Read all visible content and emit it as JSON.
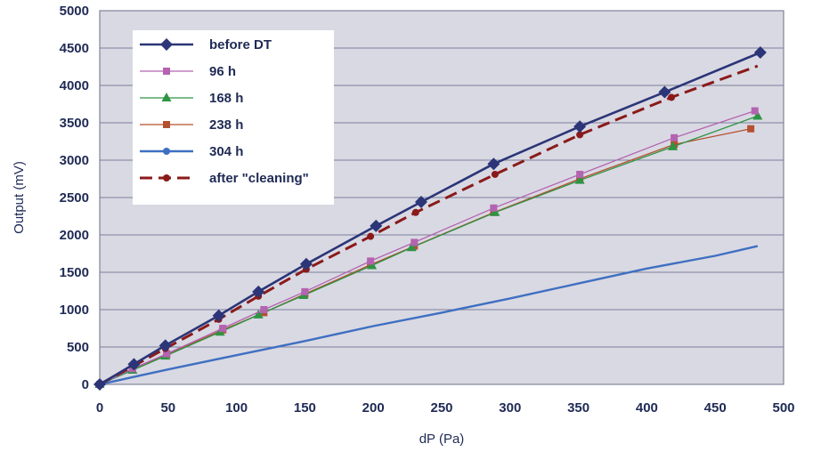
{
  "chart_data": {
    "type": "line",
    "title": "",
    "xlabel": "dP (Pa)",
    "ylabel": "Output (mV)",
    "xlim": [
      0,
      500
    ],
    "ylim": [
      0,
      5000
    ],
    "xticks": [
      0,
      50,
      100,
      150,
      200,
      250,
      300,
      350,
      400,
      450,
      500
    ],
    "yticks": [
      0,
      500,
      1000,
      1500,
      2000,
      2500,
      3000,
      3500,
      4000,
      4500,
      5000
    ],
    "grid": "horizontal",
    "legend_position": "top-left",
    "series": [
      {
        "name": "before DT",
        "color": "#2b3577",
        "dash": "solid",
        "marker": "diamond",
        "x": [
          0,
          25,
          48,
          87,
          116,
          151,
          202,
          235,
          288,
          351,
          413,
          483
        ],
        "y": [
          0,
          270,
          520,
          920,
          1240,
          1610,
          2120,
          2440,
          2950,
          3450,
          3910,
          4440
        ]
      },
      {
        "name": "96 h",
        "color": "#b463b0",
        "dash": "solid",
        "marker": "square",
        "x": [
          0,
          24,
          49,
          90,
          120,
          150,
          198,
          230,
          288,
          351,
          420,
          479
        ],
        "y": [
          0,
          210,
          410,
          750,
          1000,
          1240,
          1650,
          1900,
          2360,
          2810,
          3300,
          3660
        ]
      },
      {
        "name": "168 h",
        "color": "#2e9444",
        "dash": "solid",
        "marker": "triangle",
        "x": [
          0,
          24,
          48,
          88,
          116,
          149,
          199,
          228,
          289,
          351,
          419,
          481
        ],
        "y": [
          0,
          190,
          380,
          700,
          930,
          1190,
          1590,
          1830,
          2300,
          2730,
          3180,
          3590
        ]
      },
      {
        "name": "238 h",
        "color": "#b5502f",
        "dash": "solid",
        "marker": "square",
        "x": [
          0,
          24,
          49,
          90,
          120,
          150,
          198,
          230,
          288,
          351,
          420,
          476
        ],
        "y": [
          0,
          200,
          400,
          730,
          960,
          1210,
          1600,
          1850,
          2300,
          2750,
          3210,
          3420
        ]
      },
      {
        "name": "304 h",
        "color": "#3f6fc2",
        "dash": "solid",
        "marker": "circle",
        "x": [
          0,
          25,
          50,
          100,
          150,
          200,
          250,
          300,
          350,
          400,
          450,
          481
        ],
        "y": [
          0,
          100,
          200,
          390,
          580,
          780,
          960,
          1150,
          1350,
          1550,
          1720,
          1850
        ]
      },
      {
        "name": "after \"cleaning\"",
        "color": "#8a1a1a",
        "dash": "dashed",
        "marker": "circle",
        "x": [
          0,
          25,
          48,
          87,
          116,
          151,
          198,
          231,
          289,
          351,
          418,
          481
        ],
        "y": [
          0,
          250,
          480,
          870,
          1180,
          1540,
          1980,
          2300,
          2810,
          3340,
          3840,
          4260
        ]
      }
    ]
  }
}
